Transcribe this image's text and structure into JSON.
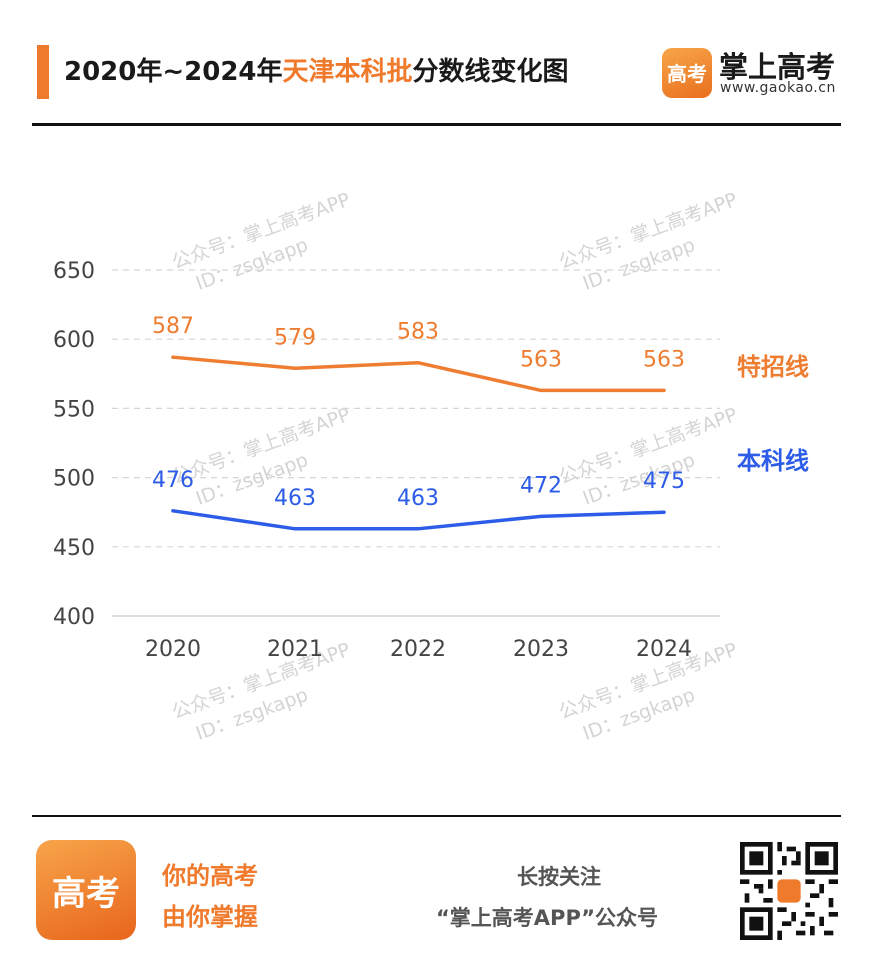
{
  "header": {
    "title_prefix": "2020年~2024年",
    "title_highlight": "天津本科批",
    "title_suffix": "分数线变化图",
    "logo_glyph": "高考",
    "brand_name": "掌上高考",
    "brand_url": "www.gaokao.cn",
    "accent_color": "#f07a2c"
  },
  "watermark": {
    "line1": "公众号：掌上高考APP",
    "line2": "ID：zsgkapp"
  },
  "chart_data": {
    "type": "line",
    "title": "2020年~2024年天津本科批分数线变化图",
    "categories": [
      "2020",
      "2021",
      "2022",
      "2023",
      "2024"
    ],
    "yticks": [
      400,
      450,
      500,
      550,
      600,
      650
    ],
    "ylim": [
      400,
      650
    ],
    "grid": true,
    "legend_position": "right",
    "series": [
      {
        "name": "特招线",
        "values": [
          587,
          579,
          583,
          563,
          563
        ],
        "color": "#ee7d31"
      },
      {
        "name": "本科线",
        "values": [
          476,
          463,
          463,
          472,
          475
        ],
        "color": "#2c5ce8"
      }
    ]
  },
  "footer": {
    "logo_glyph": "高考",
    "slogan_line1": "你的高考",
    "slogan_line2": "由你掌握",
    "follow_line1": "长按关注",
    "follow_line2": "“掌上高考APP”公众号",
    "qr_icon": "qr-code-icon"
  }
}
